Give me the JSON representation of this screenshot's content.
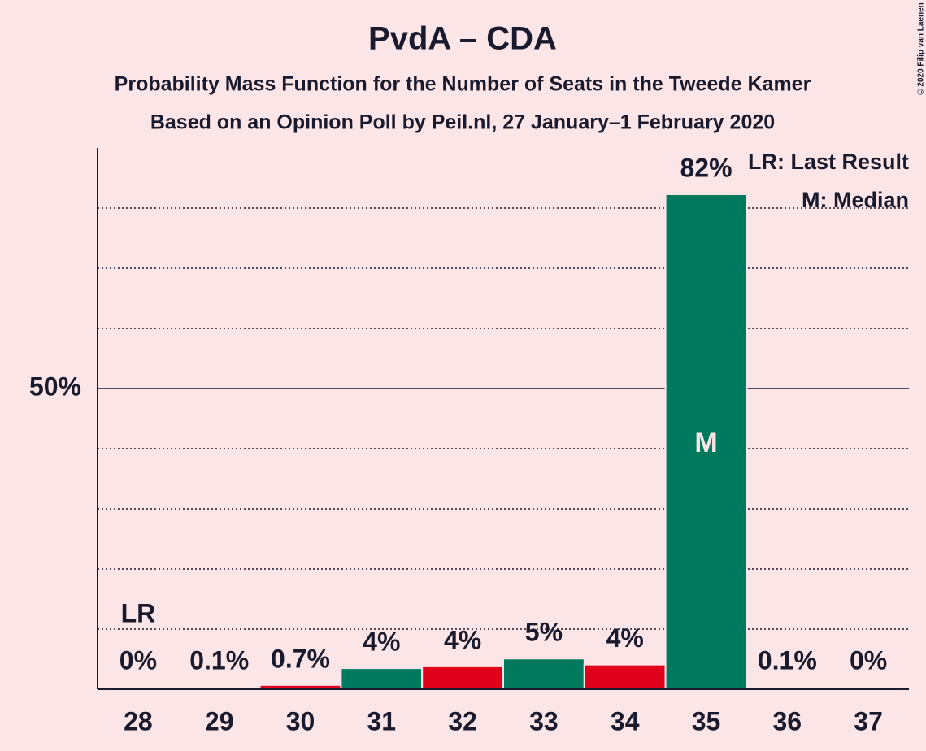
{
  "chart_data": {
    "type": "bar",
    "title": "PvdA – CDA",
    "subtitle": "Probability Mass Function for the Number of Seats in the Tweede Kamer",
    "subtitle2": "Based on an Opinion Poll by Peil.nl, 27 January–1 February 2020",
    "copyright": "© 2020 Filip van Laenen",
    "categories": [
      28,
      29,
      30,
      31,
      32,
      33,
      34,
      35,
      36,
      37
    ],
    "values": [
      0,
      0.1,
      0.7,
      3.5,
      3.8,
      5.1,
      4.1,
      82.3,
      0.1,
      0
    ],
    "value_labels": [
      "0%",
      "0.1%",
      "0.7%",
      "4%",
      "4%",
      "5%",
      "4%",
      "82%",
      "0.1%",
      "0%"
    ],
    "colors": [
      "#e0001b",
      "#007a5e",
      "#e0001b",
      "#007a5e",
      "#e0001b",
      "#007a5e",
      "#e0001b",
      "#007a5e",
      "#e0001b",
      "#007a5e"
    ],
    "ylim": [
      0,
      90
    ],
    "yticks": [
      {
        "value": 50,
        "label": "50%"
      }
    ],
    "grid_values": [
      10,
      20,
      30,
      40,
      60,
      70,
      80
    ],
    "last_result": 28,
    "last_result_label": "LR",
    "median": 35,
    "median_label": "M",
    "legend": [
      "LR: Last Result",
      "M: Median"
    ]
  }
}
